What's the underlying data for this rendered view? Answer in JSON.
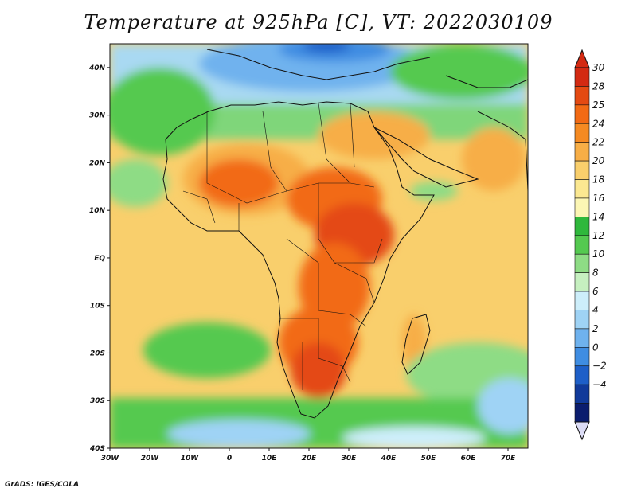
{
  "title": "Temperature at 925hPa [C], VT: 2022030109",
  "credit": "GrADS: IGES/COLA",
  "map": {
    "lon_range": [
      -30,
      75
    ],
    "lat_range": [
      -40,
      45
    ],
    "lat_ticks": [
      "40N",
      "30N",
      "20N",
      "10N",
      "EQ",
      "10S",
      "20S",
      "30S",
      "40S"
    ],
    "lon_ticks": [
      "30W",
      "20W",
      "10W",
      "0",
      "10E",
      "20E",
      "30E",
      "40E",
      "50E",
      "60E",
      "70E"
    ]
  },
  "colorbar": {
    "labels": [
      "30",
      "28",
      "25",
      "24",
      "22",
      "20",
      "18",
      "16",
      "14",
      "12",
      "10",
      "8",
      "6",
      "4",
      "2",
      "0",
      "−2",
      "−4"
    ],
    "colors": [
      "#d32a12",
      "#e44a12",
      "#f26a14",
      "#f58a22",
      "#f7ae46",
      "#f9cf6c",
      "#fbe891",
      "#fcf6b4",
      "#2fb83c",
      "#54c950",
      "#8edc85",
      "#c6f0c0",
      "#cdeefa",
      "#9fd3f5",
      "#6fb2ee",
      "#3f8de2",
      "#1e5fc8",
      "#113a9a",
      "#0b1d6e"
    ],
    "top_color": "#d32a12",
    "bottom_color": "#dcdcf5"
  }
}
